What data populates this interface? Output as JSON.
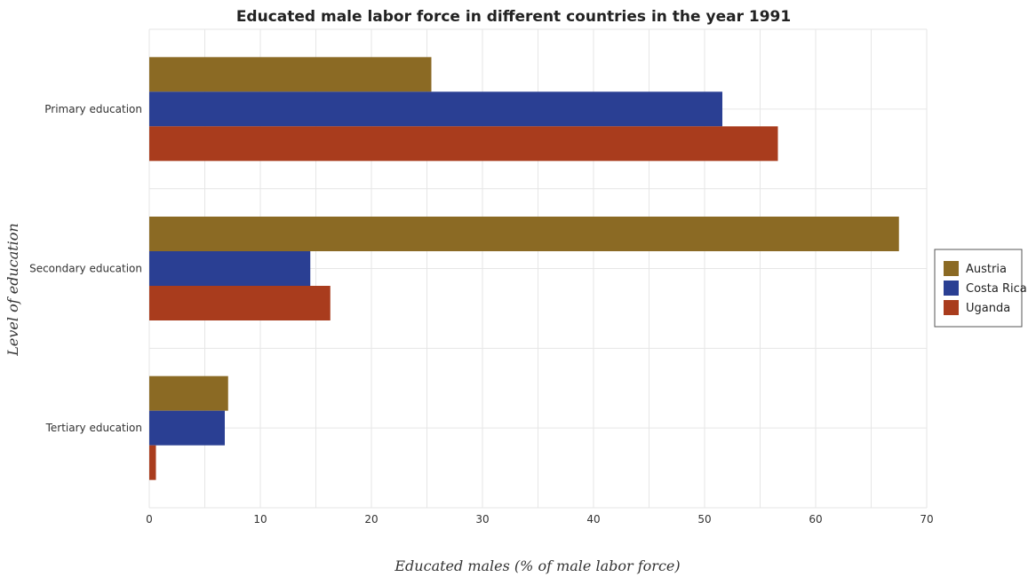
{
  "chart_data": {
    "type": "bar",
    "orientation": "horizontal",
    "title": "Educated male labor force in different countries in the year 1991",
    "xlabel": "Educated males (% of male labor force)",
    "ylabel": "Level of education",
    "categories": [
      "Primary education",
      "Secondary education",
      "Tertiary education"
    ],
    "xlim": [
      0,
      70
    ],
    "xticks": [
      "0",
      "10",
      "20",
      "30",
      "40",
      "50",
      "60",
      "70"
    ],
    "grid": true,
    "legend_position": "right",
    "series": [
      {
        "name": "Austria",
        "color": "#8b6a24",
        "values": [
          25.4,
          67.5,
          7.1
        ]
      },
      {
        "name": "Costa Rica",
        "color": "#2a3f93",
        "values": [
          51.6,
          14.5,
          6.8
        ]
      },
      {
        "name": "Uganda",
        "color": "#a93c1d",
        "values": [
          56.6,
          16.3,
          0.6
        ]
      }
    ]
  }
}
